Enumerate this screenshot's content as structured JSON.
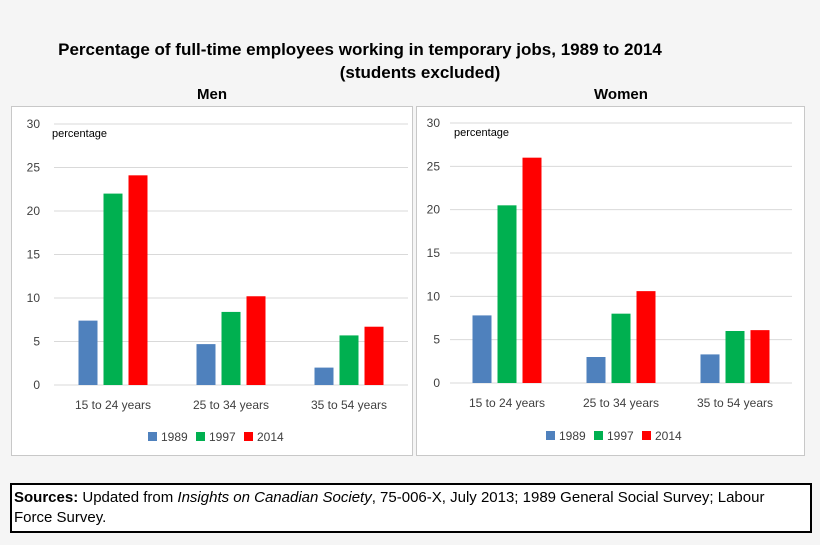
{
  "title_line1": "Percentage of full-time employees working in temporary jobs, 1989 to 2014",
  "title_line2": "(students excluded)",
  "sources": {
    "label": "Sources:",
    "text_before": " Updated from ",
    "publication": "Insights on Canadian Society",
    "text_after": ", 75-006-X, July 2013; 1989 General Social Survey; Labour Force Survey."
  },
  "colors": {
    "1989": "#4f81bd",
    "1997": "#00b050",
    "2014": "#ff0000"
  },
  "chart_data": [
    {
      "type": "bar",
      "title": "Men",
      "ylabel": "percentage",
      "xlabel": "",
      "ylim": [
        0,
        30
      ],
      "yticks": [
        0,
        5,
        10,
        15,
        20,
        25,
        30
      ],
      "grid": true,
      "legend_position": "bottom",
      "categories": [
        "15 to 24 years",
        "25 to 34 years",
        "35 to 54 years"
      ],
      "series": [
        {
          "name": "1989",
          "values": [
            7.4,
            4.7,
            2.0
          ]
        },
        {
          "name": "1997",
          "values": [
            22.0,
            8.4,
            5.7
          ]
        },
        {
          "name": "2014",
          "values": [
            24.1,
            10.2,
            6.7
          ]
        }
      ]
    },
    {
      "type": "bar",
      "title": "Women",
      "ylabel": "percentage",
      "xlabel": "",
      "ylim": [
        0,
        30
      ],
      "yticks": [
        0,
        5,
        10,
        15,
        20,
        25,
        30
      ],
      "grid": true,
      "legend_position": "bottom",
      "categories": [
        "15 to 24 years",
        "25 to 34 years",
        "35 to 54 years"
      ],
      "series": [
        {
          "name": "1989",
          "values": [
            7.8,
            3.0,
            3.3
          ]
        },
        {
          "name": "1997",
          "values": [
            20.5,
            8.0,
            6.0
          ]
        },
        {
          "name": "2014",
          "values": [
            26.0,
            10.6,
            6.1
          ]
        }
      ]
    }
  ]
}
